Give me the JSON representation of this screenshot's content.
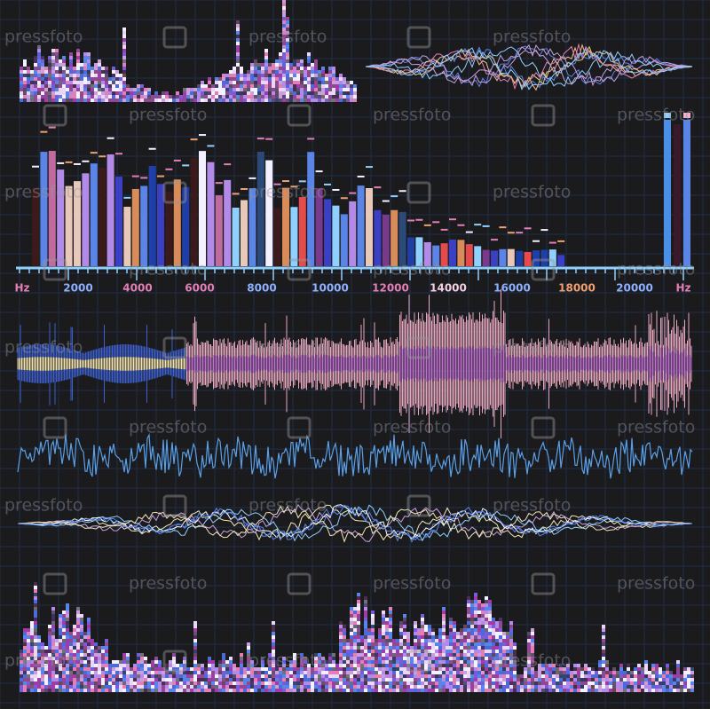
{
  "watermark": "pressfoto",
  "axis_labels": [
    "Hz",
    "2000",
    "4000",
    "6000",
    "8000",
    "10000",
    "12000",
    "14000",
    "16000",
    "18000",
    "20000",
    "Hz"
  ]
}
